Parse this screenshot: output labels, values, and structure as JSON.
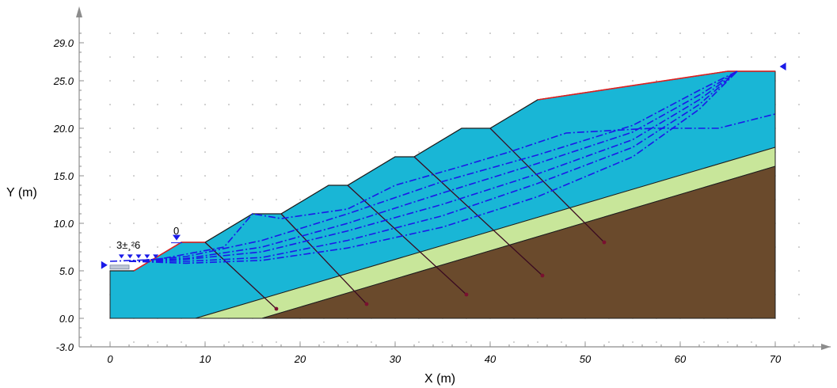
{
  "chart_data": {
    "type": "slope-stability-section",
    "xlabel": "X (m)",
    "ylabel": "Y (m)",
    "xlim": [
      -3,
      76
    ],
    "ylim": [
      -3,
      33
    ],
    "x_ticks": [
      "0",
      "10",
      "20",
      "30",
      "40",
      "50",
      "60",
      "70"
    ],
    "y_ticks": [
      "-3.0",
      "0.0",
      "5.0",
      "10.0",
      "15.0",
      "20.0",
      "25.0",
      "29.0"
    ],
    "colors": {
      "upper_soil": "#19b6d6",
      "middle_soil": "#c8e69a",
      "bedrock": "#6a4a2c",
      "ground_surface": "#e02020",
      "slip_surfaces": "#1a1ae8",
      "anchors": "#3a0a20"
    },
    "layers": [
      {
        "name": "upper soil",
        "color": "upper_soil",
        "polygon": [
          [
            0,
            0
          ],
          [
            0,
            5
          ],
          [
            2.5,
            5
          ],
          [
            7.5,
            8
          ],
          [
            10,
            8
          ],
          [
            15,
            11
          ],
          [
            18,
            11
          ],
          [
            23,
            14
          ],
          [
            25,
            14
          ],
          [
            30,
            17
          ],
          [
            32,
            17
          ],
          [
            37,
            20
          ],
          [
            40,
            20
          ],
          [
            45,
            23
          ],
          [
            65,
            26
          ],
          [
            70,
            26
          ],
          [
            70,
            18
          ],
          [
            9,
            0
          ]
        ]
      },
      {
        "name": "middle soil",
        "color": "middle_soil",
        "polygon": [
          [
            9,
            0
          ],
          [
            70,
            18
          ],
          [
            70,
            16
          ],
          [
            16,
            0
          ]
        ]
      },
      {
        "name": "bedrock",
        "color": "bedrock",
        "polygon": [
          [
            16,
            0
          ],
          [
            70,
            16
          ],
          [
            70,
            0
          ]
        ]
      }
    ],
    "ground_surface": [
      [
        0,
        5
      ],
      [
        2.5,
        5
      ],
      [
        7.5,
        8
      ],
      [
        10,
        8
      ],
      [
        15,
        11
      ],
      [
        18,
        11
      ],
      [
        23,
        14
      ],
      [
        25,
        14
      ],
      [
        30,
        17
      ],
      [
        32,
        17
      ],
      [
        37,
        20
      ],
      [
        40,
        20
      ],
      [
        45,
        23
      ],
      [
        65,
        26
      ],
      [
        70,
        26
      ]
    ],
    "anchors": [
      {
        "start": [
          10,
          8
        ],
        "end": [
          17.5,
          1
        ]
      },
      {
        "start": [
          18,
          11
        ],
        "end": [
          27,
          1.5
        ]
      },
      {
        "start": [
          25,
          14
        ],
        "end": [
          37.5,
          2.5
        ]
      },
      {
        "start": [
          32,
          17
        ],
        "end": [
          45.5,
          4.5
        ]
      },
      {
        "start": [
          40,
          20
        ],
        "end": [
          52,
          8
        ]
      }
    ],
    "phreatic_line": [
      [
        0,
        6
      ],
      [
        5,
        6.2
      ],
      [
        12,
        7.5
      ],
      [
        15,
        11
      ],
      [
        18,
        10.5
      ],
      [
        25,
        11.5
      ],
      [
        30,
        14
      ],
      [
        37,
        16
      ],
      [
        42,
        17.5
      ],
      [
        48,
        19.5
      ],
      [
        57,
        20
      ],
      [
        64,
        20
      ],
      [
        70,
        21.5
      ]
    ],
    "slip_surfaces": [
      [
        [
          2,
          6
        ],
        [
          8,
          5.8
        ],
        [
          16,
          6.1
        ],
        [
          25,
          7.4
        ],
        [
          35,
          9.6
        ],
        [
          45,
          12.8
        ],
        [
          55,
          17
        ],
        [
          62,
          22
        ],
        [
          66,
          26
        ]
      ],
      [
        [
          2,
          6
        ],
        [
          8,
          6
        ],
        [
          16,
          6.4
        ],
        [
          25,
          8.2
        ],
        [
          35,
          10.8
        ],
        [
          45,
          14.2
        ],
        [
          55,
          18
        ],
        [
          62,
          22.5
        ],
        [
          66,
          26
        ]
      ],
      [
        [
          2,
          6
        ],
        [
          8,
          6.2
        ],
        [
          16,
          7
        ],
        [
          25,
          9.2
        ],
        [
          35,
          12
        ],
        [
          45,
          15.2
        ],
        [
          55,
          18.8
        ],
        [
          62,
          23
        ],
        [
          66,
          26
        ]
      ],
      [
        [
          2,
          6
        ],
        [
          8,
          6.3
        ],
        [
          16,
          7.5
        ],
        [
          25,
          10
        ],
        [
          35,
          13.2
        ],
        [
          45,
          16.3
        ],
        [
          55,
          19.6
        ],
        [
          62,
          23.5
        ],
        [
          66,
          26
        ]
      ],
      [
        [
          2,
          6
        ],
        [
          8,
          6.5
        ],
        [
          16,
          8.2
        ],
        [
          25,
          11
        ],
        [
          35,
          14.4
        ],
        [
          45,
          17.2
        ],
        [
          55,
          20.3
        ],
        [
          62,
          24
        ],
        [
          66,
          26
        ]
      ]
    ],
    "annotations": {
      "water_marker_label": "0",
      "left_label": "3±¸²6"
    }
  }
}
